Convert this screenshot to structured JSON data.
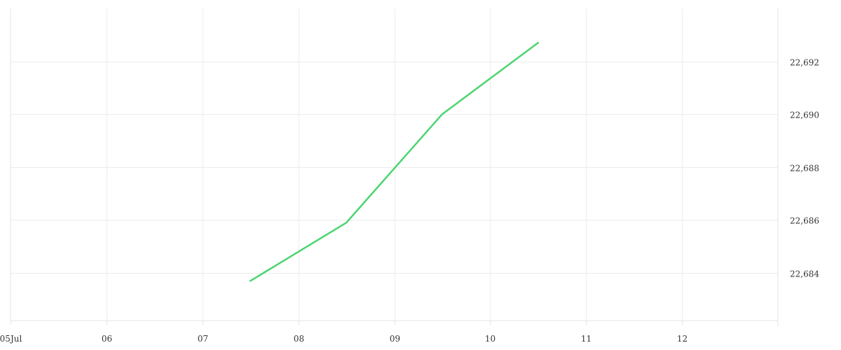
{
  "chart_data": {
    "type": "line",
    "title": "",
    "xlabel": "",
    "ylabel": "",
    "x_ticks": [
      {
        "value": 0,
        "label": "05Jul"
      },
      {
        "value": 1,
        "label": "06"
      },
      {
        "value": 2,
        "label": "07"
      },
      {
        "value": 3,
        "label": "08"
      },
      {
        "value": 4,
        "label": "09"
      },
      {
        "value": 5,
        "label": "10"
      },
      {
        "value": 6,
        "label": "11"
      },
      {
        "value": 7,
        "label": "12"
      }
    ],
    "y_ticks": [
      22684,
      22686,
      22688,
      22690,
      22692
    ],
    "y_tick_labels": [
      "22,684",
      "22,686",
      "22,688",
      "22,690",
      "22,692"
    ],
    "xlim": [
      0,
      8
    ],
    "ylim": [
      22682.2,
      22694.0
    ],
    "grid": true,
    "legend": "none",
    "series": [
      {
        "color": "#4cd471",
        "points": [
          {
            "x": 2.5,
            "y": 22683.7
          },
          {
            "x": 3.5,
            "y": 22685.9
          },
          {
            "x": 4.5,
            "y": 22690.0
          },
          {
            "x": 5.5,
            "y": 22692.7
          }
        ]
      }
    ]
  }
}
